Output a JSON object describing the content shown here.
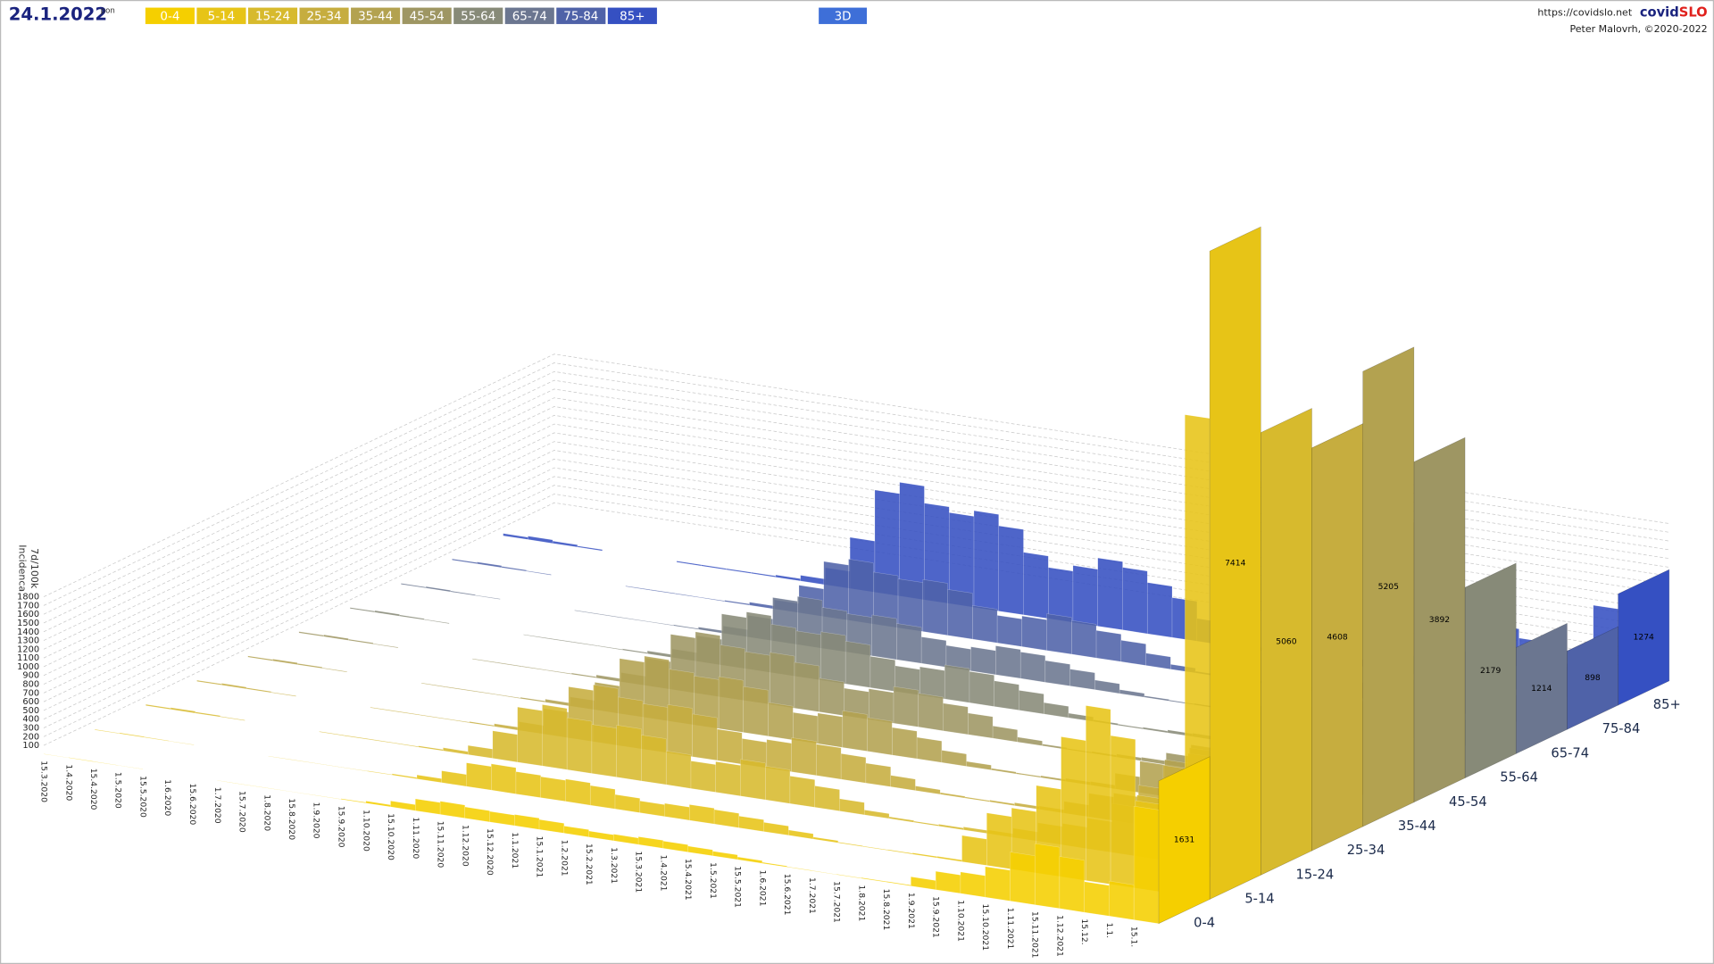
{
  "header": {
    "date": "24.1.2022",
    "weekday": "pon",
    "mode": "3D",
    "url": "https://covidslo.net",
    "brand_a": "covid",
    "brand_b": "SLO",
    "author": "Peter Malovrh, ©2020-2022"
  },
  "chart_data": {
    "type": "area3d",
    "ylabel": "Incidenca",
    "yunit": "7d/100k",
    "ylim": [
      0,
      1800
    ],
    "yticks": [
      100,
      200,
      300,
      400,
      500,
      600,
      700,
      800,
      900,
      1000,
      1100,
      1200,
      1300,
      1400,
      1500,
      1600,
      1700,
      1800
    ],
    "grid": true,
    "categories": [
      "15.3.2020",
      "1.4.2020",
      "15.4.2020",
      "1.5.2020",
      "15.5.2020",
      "1.6.2020",
      "15.6.2020",
      "1.7.2020",
      "15.7.2020",
      "1.8.2020",
      "15.8.2020",
      "1.9.2020",
      "15.9.2020",
      "1.10.2020",
      "15.10.2020",
      "1.11.2020",
      "15.11.2020",
      "1.12.2020",
      "15.12.2020",
      "1.1.2021",
      "15.1.2021",
      "1.2.2021",
      "15.2.2021",
      "1.3.2021",
      "15.3.2021",
      "1.4.2021",
      "15.4.2021",
      "1.5.2021",
      "15.5.2021",
      "1.6.2021",
      "15.6.2021",
      "1.7.2021",
      "15.7.2021",
      "1.8.2021",
      "15.8.2021",
      "1.9.2021",
      "15.9.2021",
      "1.10.2021",
      "15.10.2021",
      "1.11.2021",
      "15.11.2021",
      "1.12.2021",
      "15.12.",
      "1.1.",
      "15.1."
    ],
    "series": [
      {
        "name": "0-4",
        "color": "#f5cf00",
        "last": 1631,
        "values": [
          3,
          5,
          3,
          2,
          0,
          0,
          0,
          2,
          2,
          2,
          2,
          3,
          8,
          23,
          68,
          135,
          150,
          128,
          120,
          128,
          113,
          83,
          68,
          75,
          90,
          83,
          68,
          53,
          30,
          12,
          5,
          3,
          5,
          8,
          9,
          105,
          210,
          245,
          350,
          560,
          700,
          595,
          350,
          400,
          1300
        ]
      },
      {
        "name": "5-14",
        "color": "#e7c417",
        "last": 7414,
        "values": [
          6,
          9,
          6,
          3,
          0,
          0,
          0,
          3,
          3,
          3,
          3,
          6,
          15,
          45,
          135,
          270,
          300,
          255,
          240,
          255,
          225,
          165,
          135,
          150,
          180,
          165,
          135,
          105,
          60,
          24,
          9,
          6,
          9,
          15,
          18,
          300,
          600,
          700,
          1000,
          1600,
          2000,
          1700,
          1000,
          1000,
          5500
        ]
      },
      {
        "name": "15-24",
        "color": "#d7ba2d",
        "last": 5060,
        "values": [
          14,
          21,
          14,
          7,
          0,
          0,
          0,
          7,
          7,
          7,
          7,
          14,
          35,
          105,
          315,
          630,
          700,
          595,
          560,
          595,
          525,
          385,
          315,
          350,
          420,
          385,
          315,
          245,
          140,
          56,
          21,
          14,
          21,
          35,
          42,
          105,
          210,
          245,
          350,
          560,
          700,
          595,
          350,
          1400,
          4500
        ]
      },
      {
        "name": "25-34",
        "color": "#c6ad3f",
        "last": 4608,
        "values": [
          13,
          20,
          13,
          7,
          0,
          0,
          0,
          7,
          7,
          7,
          7,
          13,
          33,
          98,
          293,
          585,
          650,
          553,
          520,
          553,
          488,
          358,
          293,
          325,
          390,
          358,
          293,
          228,
          130,
          52,
          20,
          13,
          20,
          33,
          39,
          135,
          270,
          315,
          450,
          720,
          900,
          765,
          450,
          1300,
          4000
        ]
      },
      {
        "name": "35-44",
        "color": "#b3a250",
        "last": 5205,
        "values": [
          14,
          21,
          14,
          7,
          0,
          0,
          0,
          7,
          7,
          7,
          7,
          14,
          35,
          105,
          315,
          630,
          700,
          595,
          560,
          595,
          525,
          385,
          315,
          350,
          420,
          385,
          315,
          245,
          140,
          56,
          21,
          14,
          21,
          35,
          42,
          180,
          360,
          420,
          600,
          960,
          1200,
          1020,
          600,
          1200,
          4400
        ]
      },
      {
        "name": "45-54",
        "color": "#9e9663",
        "last": 3892,
        "values": [
          14,
          21,
          14,
          7,
          0,
          0,
          0,
          7,
          7,
          7,
          7,
          14,
          35,
          105,
          315,
          630,
          700,
          595,
          560,
          595,
          525,
          385,
          315,
          350,
          420,
          385,
          315,
          245,
          140,
          56,
          21,
          14,
          21,
          35,
          42,
          135,
          270,
          315,
          450,
          720,
          900,
          765,
          450,
          800,
          3200
        ]
      },
      {
        "name": "55-64",
        "color": "#878a78",
        "last": 2179,
        "values": [
          13,
          20,
          13,
          7,
          0,
          0,
          0,
          7,
          7,
          7,
          7,
          13,
          33,
          98,
          293,
          585,
          650,
          553,
          520,
          553,
          488,
          358,
          293,
          325,
          390,
          358,
          293,
          228,
          130,
          52,
          20,
          13,
          20,
          33,
          39,
          105,
          210,
          245,
          350,
          560,
          700,
          595,
          350,
          500,
          1800
        ]
      },
      {
        "name": "65-74",
        "color": "#6b7690",
        "last": 1214,
        "values": [
          11,
          17,
          11,
          6,
          0,
          0,
          0,
          6,
          6,
          6,
          6,
          11,
          28,
          83,
          248,
          495,
          550,
          468,
          440,
          468,
          413,
          303,
          248,
          275,
          330,
          303,
          248,
          193,
          110,
          44,
          17,
          11,
          17,
          28,
          33,
          90,
          180,
          210,
          300,
          480,
          600,
          510,
          300,
          350,
          1000
        ]
      },
      {
        "name": "75-84",
        "color": "#4f62a8",
        "last": 898,
        "values": [
          14,
          21,
          14,
          7,
          0,
          0,
          0,
          7,
          7,
          7,
          7,
          14,
          35,
          105,
          315,
          630,
          700,
          595,
          560,
          595,
          525,
          385,
          315,
          350,
          420,
          385,
          315,
          245,
          140,
          56,
          21,
          14,
          21,
          35,
          42,
          90,
          180,
          210,
          300,
          480,
          600,
          510,
          300,
          300,
          750
        ]
      },
      {
        "name": "85+",
        "color": "#3550c2",
        "last": 1274,
        "values": [
          26,
          39,
          26,
          13,
          0,
          0,
          0,
          13,
          13,
          13,
          13,
          26,
          65,
          195,
          585,
          1170,
          1300,
          1105,
          1040,
          1105,
          975,
          715,
          585,
          650,
          780,
          715,
          585,
          455,
          260,
          104,
          39,
          26,
          39,
          65,
          78,
          105,
          210,
          245,
          350,
          560,
          700,
          595,
          350,
          400,
          1100
        ]
      }
    ]
  }
}
